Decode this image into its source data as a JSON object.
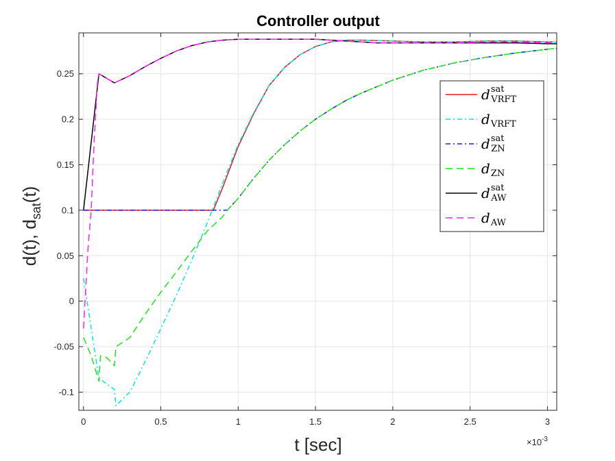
{
  "chart_data": {
    "type": "line",
    "title": "Controller output",
    "xlabel": "t [sec]",
    "ylabel": "d(t), d",
    "ylabel_sub": "sat",
    "ylabel_tail": "(t)",
    "x_exponent_label": "×10",
    "x_exponent_power": "-3",
    "x_scale": 0.001,
    "xlim": [
      -0.03,
      3.06
    ],
    "ylim": [
      -0.12,
      0.295
    ],
    "xticks": [
      0,
      0.5,
      1,
      1.5,
      2,
      2.5,
      3
    ],
    "xtick_labels": [
      "0",
      "0.5",
      "1",
      "1.5",
      "2",
      "2.5",
      "3"
    ],
    "yticks": [
      -0.1,
      -0.05,
      0,
      0.05,
      0.1,
      0.15,
      0.2,
      0.25
    ],
    "ytick_labels": [
      "-0.1",
      "-0.05",
      "0",
      "0.05",
      "0.1",
      "0.15",
      "0.2",
      "0.25"
    ],
    "grid": true,
    "legend_position": "right",
    "series": [
      {
        "id": "vrft_sat",
        "legend_base": "d",
        "legend_sup": "sat",
        "legend_sub": "VRFT",
        "color": "#e31a1c",
        "dash": "",
        "width": 1.5,
        "x": [
          0,
          0.05,
          0.1,
          0.2,
          0.3,
          0.4,
          0.5,
          0.6,
          0.7,
          0.8,
          0.84,
          0.9,
          1.0,
          1.1,
          1.2,
          1.3,
          1.4,
          1.5,
          1.6,
          1.7,
          1.8,
          2.0,
          2.2,
          2.4,
          2.6,
          2.8,
          3.0,
          3.06
        ],
        "y": [
          0.1,
          0.1,
          0.1,
          0.1,
          0.1,
          0.1,
          0.1,
          0.1,
          0.1,
          0.1,
          0.1,
          0.125,
          0.17,
          0.206,
          0.237,
          0.257,
          0.271,
          0.28,
          0.285,
          0.287,
          0.287,
          0.286,
          0.285,
          0.285,
          0.286,
          0.286,
          0.285,
          0.285
        ]
      },
      {
        "id": "vrft",
        "legend_base": "d",
        "legend_sup": "",
        "legend_sub": "VRFT",
        "color": "#00e5e5",
        "dash": "7,4,2,4",
        "width": 1.5,
        "x": [
          0,
          0.02,
          0.1,
          0.2,
          0.21,
          0.3,
          0.4,
          0.5,
          0.6,
          0.7,
          0.8,
          0.9,
          1.0,
          1.1,
          1.2,
          1.3,
          1.4,
          1.5,
          1.6,
          1.7,
          1.8,
          2.0,
          2.2,
          2.4,
          2.6,
          2.8,
          3.0,
          3.06
        ],
        "y": [
          0.025,
          0.003,
          -0.085,
          -0.097,
          -0.115,
          -0.1,
          -0.066,
          -0.03,
          0.006,
          0.045,
          0.086,
          0.13,
          0.172,
          0.207,
          0.237,
          0.257,
          0.271,
          0.28,
          0.285,
          0.287,
          0.287,
          0.286,
          0.285,
          0.285,
          0.286,
          0.286,
          0.285,
          0.285
        ]
      },
      {
        "id": "zn_sat",
        "legend_base": "d",
        "legend_sup": "sat",
        "legend_sub": "ZN",
        "color": "#1f1fd6",
        "dash": "7,4,2,4",
        "width": 1.5,
        "x": [
          0,
          0.1,
          0.2,
          0.3,
          0.4,
          0.5,
          0.6,
          0.7,
          0.8,
          0.9,
          0.93,
          1.0,
          1.1,
          1.2,
          1.3,
          1.4,
          1.5,
          1.6,
          1.7,
          1.8,
          1.9,
          2.0,
          2.2,
          2.4,
          2.6,
          2.8,
          3.0,
          3.06
        ],
        "y": [
          0.1,
          0.1,
          0.1,
          0.1,
          0.1,
          0.1,
          0.1,
          0.1,
          0.1,
          0.1,
          0.1,
          0.113,
          0.135,
          0.155,
          0.172,
          0.187,
          0.2,
          0.211,
          0.221,
          0.229,
          0.236,
          0.243,
          0.254,
          0.262,
          0.268,
          0.273,
          0.277,
          0.278
        ]
      },
      {
        "id": "zn",
        "legend_base": "d",
        "legend_sup": "",
        "legend_sub": "ZN",
        "color": "#19e619",
        "dash": "10,6",
        "width": 1.5,
        "x": [
          0,
          0.05,
          0.1,
          0.11,
          0.15,
          0.2,
          0.21,
          0.3,
          0.4,
          0.5,
          0.6,
          0.7,
          0.8,
          0.9,
          0.93,
          1.0,
          1.1,
          1.2,
          1.3,
          1.4,
          1.5,
          1.6,
          1.7,
          1.8,
          1.9,
          2.0,
          2.2,
          2.4,
          2.6,
          2.8,
          3.0,
          3.06
        ],
        "y": [
          -0.04,
          -0.06,
          -0.088,
          -0.06,
          -0.062,
          -0.071,
          -0.05,
          -0.04,
          -0.014,
          0.01,
          0.032,
          0.055,
          0.077,
          0.093,
          0.1,
          0.113,
          0.135,
          0.155,
          0.172,
          0.187,
          0.2,
          0.211,
          0.221,
          0.229,
          0.236,
          0.243,
          0.254,
          0.262,
          0.268,
          0.273,
          0.277,
          0.278
        ]
      },
      {
        "id": "aw_sat",
        "legend_base": "d",
        "legend_sup": "sat",
        "legend_sub": "AW",
        "color": "#000000",
        "dash": "",
        "width": 1.5,
        "x": [
          0,
          0.1,
          0.2,
          0.3,
          0.4,
          0.5,
          0.6,
          0.7,
          0.8,
          0.9,
          1.0,
          1.1,
          1.2,
          1.3,
          1.4,
          1.5,
          1.6,
          1.7,
          1.8,
          1.9,
          2.0,
          2.2,
          2.4,
          2.6,
          2.8,
          3.0,
          3.06
        ],
        "y": [
          0.1,
          0.25,
          0.24,
          0.248,
          0.258,
          0.267,
          0.275,
          0.281,
          0.285,
          0.287,
          0.288,
          0.288,
          0.288,
          0.288,
          0.288,
          0.288,
          0.287,
          0.286,
          0.285,
          0.284,
          0.284,
          0.284,
          0.284,
          0.284,
          0.284,
          0.283,
          0.283
        ]
      },
      {
        "id": "aw",
        "legend_base": "d",
        "legend_sup": "",
        "legend_sub": "AW",
        "color": "#ff1fff",
        "dash": "10,6",
        "width": 1.5,
        "x": [
          0,
          0.03,
          0.05,
          0.07,
          0.09,
          0.1,
          0.2,
          0.3,
          0.4,
          0.5,
          0.6,
          0.7,
          0.8,
          0.9,
          1.0,
          1.1,
          1.2,
          1.3,
          1.4,
          1.5,
          1.6,
          1.7,
          1.8,
          1.9,
          2.0,
          2.2,
          2.4,
          2.6,
          2.8,
          3.0,
          3.06
        ],
        "y": [
          -0.03,
          0.06,
          0.1,
          0.18,
          0.24,
          0.25,
          0.24,
          0.248,
          0.258,
          0.267,
          0.275,
          0.281,
          0.285,
          0.287,
          0.288,
          0.288,
          0.288,
          0.288,
          0.288,
          0.288,
          0.287,
          0.286,
          0.285,
          0.284,
          0.284,
          0.284,
          0.284,
          0.285,
          0.285,
          0.284,
          0.284
        ]
      }
    ]
  }
}
